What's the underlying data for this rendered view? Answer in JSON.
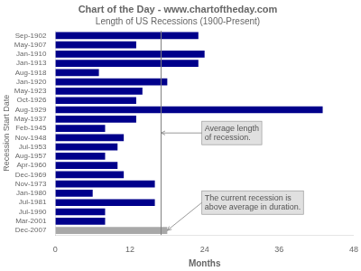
{
  "chart_data": {
    "type": "bar",
    "orientation": "horizontal",
    "title": "Chart of the Day - www.chartoftheday.com",
    "subtitle": "Length of US Recessions (1900-Present)",
    "xlabel": "Months",
    "ylabel": "Recession Start Date",
    "categories": [
      "Sep-1902",
      "May-1907",
      "Jan-1910",
      "Jan-1913",
      "Aug-1918",
      "Jan-1920",
      "May-1923",
      "Oct-1926",
      "Aug-1929",
      "May-1937",
      "Feb-1945",
      "Nov-1948",
      "Jul-1953",
      "Aug-1957",
      "Apr-1960",
      "Dec-1969",
      "Nov-1973",
      "Jan-1980",
      "Jul-1981",
      "Jul-1990",
      "Mar-2001",
      "Dec-2007"
    ],
    "values": [
      23,
      13,
      24,
      23,
      7,
      18,
      14,
      13,
      43,
      13,
      8,
      11,
      10,
      8,
      10,
      11,
      16,
      6,
      16,
      8,
      8,
      18
    ],
    "colors": [
      "#00008B",
      "#00008B",
      "#00008B",
      "#00008B",
      "#00008B",
      "#00008B",
      "#00008B",
      "#00008B",
      "#00008B",
      "#00008B",
      "#00008B",
      "#00008B",
      "#00008B",
      "#00008B",
      "#00008B",
      "#00008B",
      "#00008B",
      "#00008B",
      "#00008B",
      "#00008B",
      "#00008B",
      "#A8A8A8"
    ],
    "average_line": 17,
    "annotations": [
      {
        "text": "Average length\nof recession.",
        "x": 17
      },
      {
        "text": "The current recession is\nabove average in duration.",
        "x": 18,
        "category": "Dec-2007"
      }
    ],
    "xlim": [
      0,
      48
    ],
    "xticks": [
      0,
      12,
      24,
      36,
      48
    ],
    "grid": false
  }
}
